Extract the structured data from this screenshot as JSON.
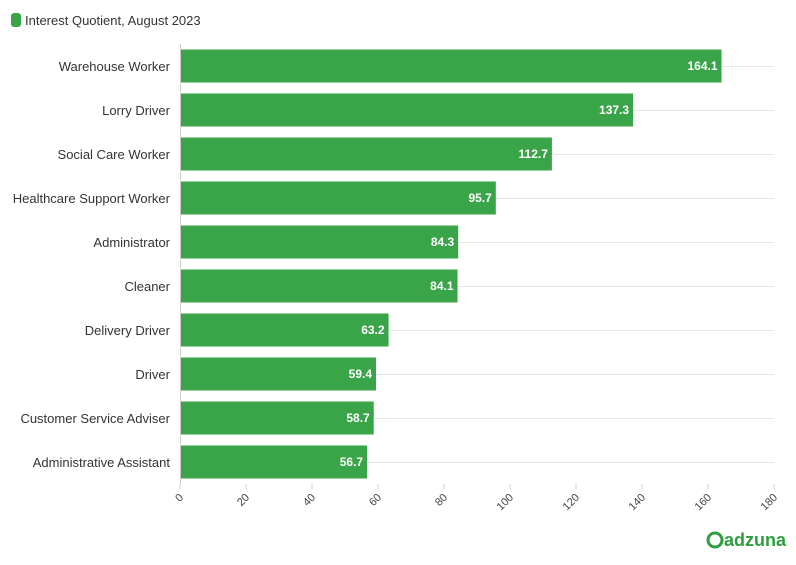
{
  "chart_data": {
    "type": "bar",
    "orientation": "horizontal",
    "categories": [
      "Warehouse Worker",
      "Lorry Driver",
      "Social Care Worker",
      "Healthcare Support Worker",
      "Administrator",
      "Cleaner",
      "Delivery Driver",
      "Driver",
      "Customer Service Adviser",
      "Administrative Assistant"
    ],
    "series": [
      {
        "name": "Interest Quotient, August 2023",
        "values": [
          164.1,
          137.3,
          112.7,
          95.7,
          84.3,
          84.1,
          63.2,
          59.4,
          58.7,
          56.7
        ]
      }
    ],
    "value_labels": [
      "164.1",
      "137.3",
      "112.7",
      "95.7",
      "84.3",
      "84.1",
      "63.2",
      "59.4",
      "58.7",
      "56.7"
    ],
    "xlim": [
      0,
      180
    ],
    "xticks": [
      0,
      20,
      40,
      60,
      80,
      100,
      120,
      140,
      160,
      180
    ],
    "xtick_labels": [
      "0",
      "20",
      "40",
      "60",
      "80",
      "100",
      "120",
      "140",
      "160",
      "180"
    ],
    "grid": true,
    "legend_position": "top-left",
    "bar_color": "#3aa449"
  },
  "legend": {
    "label": "Interest Quotient, August 2023"
  },
  "logo": {
    "text": "adzuna",
    "color": "#2e9e3e"
  }
}
